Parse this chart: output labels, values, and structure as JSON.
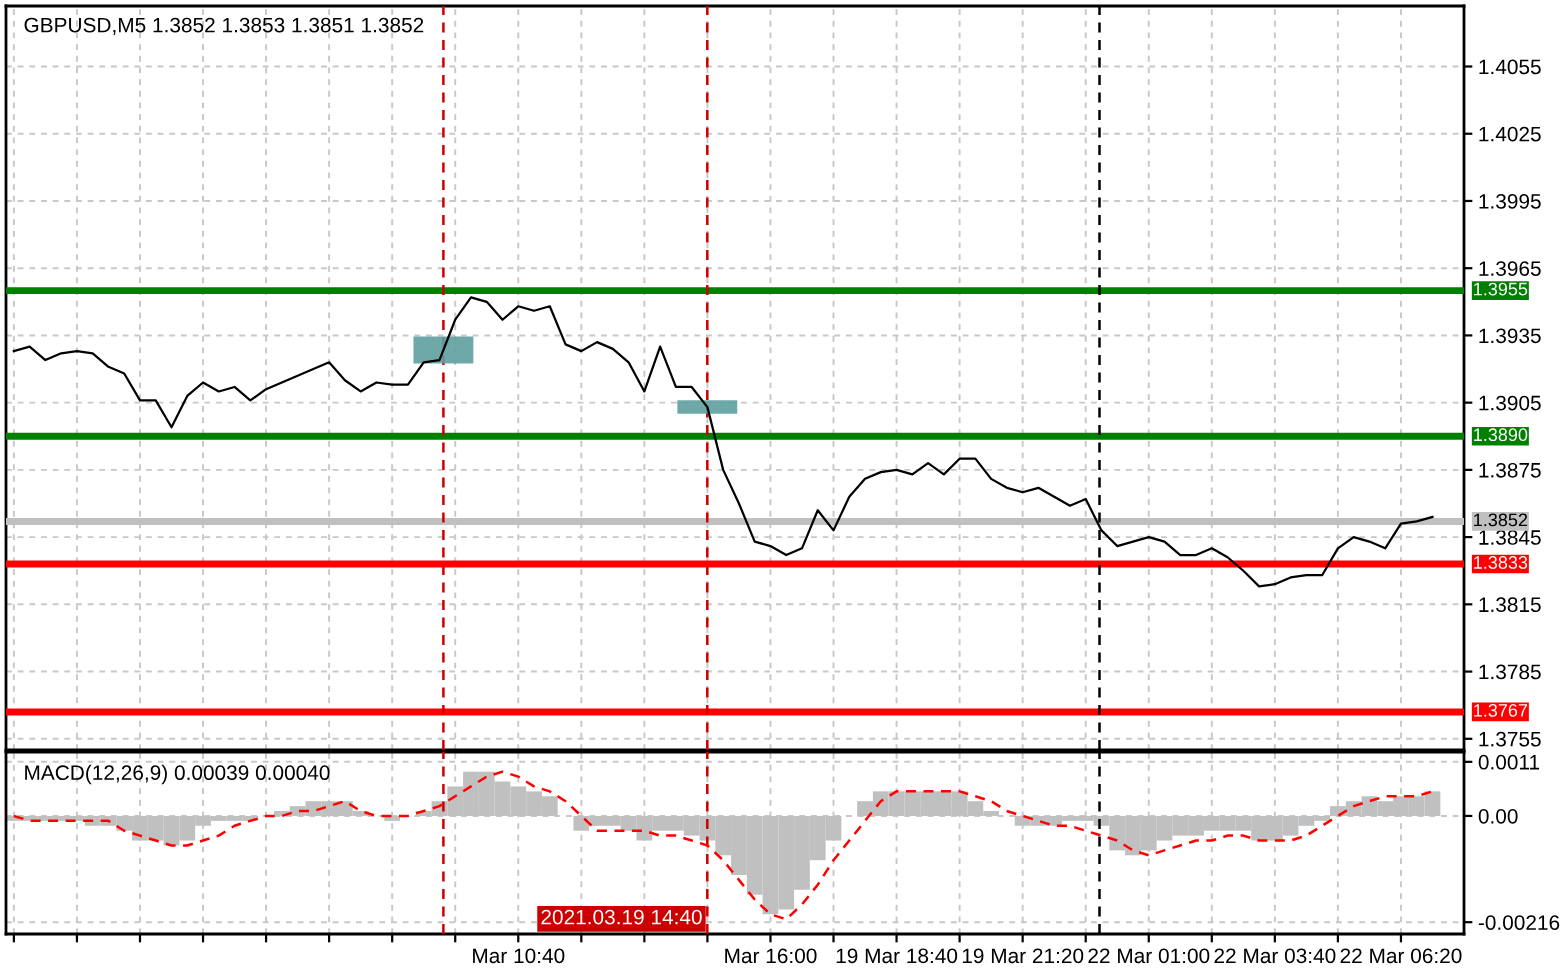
{
  "chart_data": [
    {
      "type": "line",
      "title": "GBPUSD,M5 1.3852 1.3853 1.3851 1.3852",
      "ylim": [
        1.375,
        1.4082
      ],
      "categories": [
        null,
        null,
        null,
        null,
        null,
        null,
        null,
        null,
        null,
        null,
        null,
        null,
        null,
        null,
        null,
        null,
        null,
        null,
        null,
        null,
        null,
        null,
        null,
        null,
        null,
        null,
        null,
        null,
        null,
        null,
        null,
        null,
        null,
        null,
        null,
        null,
        null,
        null,
        null,
        null,
        null,
        null,
        null,
        null,
        null,
        null,
        null,
        null,
        null,
        null,
        null,
        null,
        null,
        null,
        null,
        null,
        null,
        null,
        null,
        null,
        null,
        null,
        null,
        null,
        null,
        null,
        null,
        null,
        null,
        null,
        null,
        null,
        null,
        null,
        null,
        null,
        null,
        null,
        null,
        null,
        null,
        null,
        null,
        null,
        null,
        null,
        null,
        null,
        null,
        null,
        null
      ],
      "yticks": [
        1.4055,
        1.4025,
        1.3995,
        1.3965,
        1.3935,
        1.3905,
        1.3875,
        1.3845,
        1.3815,
        1.3785,
        1.3755
      ],
      "tick_labels": "y",
      "grid": true,
      "line_style": "solid",
      "series": [
        {
          "color": "#000000",
          "values": [
            1.3928,
            1.393,
            1.3924,
            1.3927,
            1.3928,
            1.3927,
            1.3921,
            1.3918,
            1.3906,
            1.3906,
            1.3894,
            1.3908,
            1.3914,
            1.391,
            1.3912,
            1.3906,
            1.3911,
            1.3914,
            1.3917,
            1.392,
            1.3923,
            1.3915,
            1.391,
            1.3914,
            1.3913,
            1.3913,
            1.3923,
            1.3924,
            1.3942,
            1.3952,
            1.395,
            1.3942,
            1.3948,
            1.3946,
            1.3948,
            1.3931,
            1.3928,
            1.3932,
            1.3929,
            1.3923,
            1.391,
            1.393,
            1.3912,
            1.3912,
            1.3903,
            1.3875,
            1.386,
            1.3843,
            1.3841,
            1.3837,
            1.384,
            1.3857,
            1.3848,
            1.3863,
            1.3871,
            1.3874,
            1.3875,
            1.3873,
            1.3878,
            1.3873,
            1.388,
            1.388,
            1.3871,
            1.3867,
            1.3865,
            1.3867,
            1.3863,
            1.3859,
            1.3862,
            1.3848,
            1.3841,
            1.3843,
            1.3845,
            1.3843,
            1.3837,
            1.3837,
            1.384,
            1.3836,
            1.383,
            1.3823,
            1.3824,
            1.3827,
            1.3828,
            1.3828,
            1.384,
            1.3845,
            1.3843,
            1.384,
            1.3851,
            1.3852,
            1.3854
          ]
        }
      ],
      "ref_lines": [
        {
          "axis": "y",
          "value": 1.3955,
          "label": "1.3955",
          "color": "#008000"
        },
        {
          "axis": "y",
          "value": 1.389,
          "label": "1.3890",
          "color": "#008000"
        },
        {
          "axis": "y",
          "value": 1.3852,
          "label": "1.3852",
          "color": "#c0c0c0"
        },
        {
          "axis": "y",
          "value": 1.3833,
          "label": "1.3833",
          "color": "#ff0000"
        },
        {
          "axis": "y",
          "value": 1.3767,
          "label": "1.3767",
          "color": "#ff0000"
        }
      ]
    },
    {
      "type": "line",
      "title": "MACD(12,26,9) 0.00039 0.00040",
      "ylim": [
        -0.0024,
        0.0013
      ],
      "categories": [
        null,
        null,
        null,
        null,
        null,
        null,
        null,
        null,
        null,
        null,
        null,
        null,
        null,
        null,
        null,
        null,
        null,
        null,
        null,
        null,
        null,
        null,
        null,
        null,
        null,
        null,
        null,
        null,
        null,
        null,
        null,
        null,
        "Mar 10:40",
        null,
        null,
        null,
        null,
        null,
        null,
        null,
        null,
        null,
        null,
        null,
        null,
        null,
        null,
        null,
        "Mar 16:00",
        null,
        null,
        null,
        null,
        null,
        null,
        null,
        "19 Mar 18:40",
        null,
        null,
        null,
        null,
        null,
        null,
        null,
        "19 Mar 21:20",
        null,
        null,
        null,
        null,
        null,
        null,
        null,
        "22 Mar 01:00",
        null,
        null,
        null,
        null,
        null,
        null,
        null,
        "22 Mar 03:40",
        null,
        null,
        null,
        null,
        null,
        null,
        null,
        "22 Mar 06:20",
        null,
        null
      ],
      "yticks": [
        {
          "value": 0.0011,
          "label": "0.0011"
        },
        {
          "value": 0,
          "label": "0.00"
        },
        {
          "value": -0.00216,
          "label": "-0.00216"
        }
      ],
      "grid": true,
      "series": [
        {
          "type": "bar",
          "color": "#c0c0c0",
          "values": [
            -0.0001,
            -0.0001,
            -0.0001,
            -0.0001,
            -0.0001,
            -0.0002,
            -0.0002,
            -0.0003,
            -0.0005,
            -0.0005,
            -0.0006,
            -0.0005,
            -0.0002,
            -0.0001,
            -0.0001,
            -0.0001,
            0,
            0.0001,
            0.0002,
            0.0003,
            0.0003,
            0.0003,
            0.0001,
            0,
            -0.0001,
            0,
            0.0001,
            0.0003,
            0.0006,
            0.0009,
            0.0009,
            0.0007,
            0.0006,
            0.0005,
            0.0004,
            0,
            -0.0003,
            -0.0002,
            -0.0002,
            -0.0003,
            -0.0005,
            -0.0003,
            -0.0003,
            -0.0004,
            -0.0005,
            -0.0008,
            -0.0012,
            -0.0016,
            -0.002,
            -0.0019,
            -0.0015,
            -0.0009,
            -0.0005,
            0,
            0.0003,
            0.0005,
            0.0005,
            0.0005,
            0.0005,
            0.0005,
            0.0005,
            0.0003,
            0.0001,
            0,
            -0.0002,
            -0.0002,
            -0.0002,
            -0.0001,
            -0.0001,
            -0.0002,
            -0.0007,
            -0.0008,
            -0.0007,
            -0.0005,
            -0.0004,
            -0.0004,
            -0.0003,
            -0.0003,
            -0.0003,
            -0.0005,
            -0.0005,
            -0.0004,
            -0.0002,
            -0.0001,
            0.0002,
            0.0003,
            0.0004,
            0.0003,
            0.0004,
            0.0004,
            0.0005
          ]
        },
        {
          "type": "line",
          "color": "#ff0000",
          "line_style": "dashed",
          "values": [
            0,
            -0.0001,
            -0.0001,
            -0.0001,
            -0.0001,
            -0.0001,
            -0.0001,
            -0.0003,
            -0.0004,
            -0.0005,
            -0.0006,
            -0.0006,
            -0.0005,
            -0.0004,
            -0.0002,
            -0.0001,
            0,
            0,
            0.0001,
            0.0001,
            0.0002,
            0.0003,
            0.0001,
            0,
            0,
            0,
            0.0001,
            0.0002,
            0.0004,
            0.0006,
            0.0008,
            0.0009,
            0.0008,
            0.0006,
            0.0005,
            0.0003,
            0,
            -0.0003,
            -0.0003,
            -0.0003,
            -0.0003,
            -0.0004,
            -0.0004,
            -0.0005,
            -0.0006,
            -0.0009,
            -0.0013,
            -0.0017,
            -0.002,
            -0.0021,
            -0.0018,
            -0.0014,
            -0.0009,
            -0.0005,
            -0.0001,
            0.0003,
            0.0005,
            0.0005,
            0.0005,
            0.0005,
            0.0005,
            0.0004,
            0.0003,
            0.0001,
            0,
            -0.0001,
            -0.0002,
            -0.0002,
            -0.0003,
            -0.0004,
            -0.0005,
            -0.0007,
            -0.0008,
            -0.0007,
            -0.0006,
            -0.0005,
            -0.0005,
            -0.0004,
            -0.0004,
            -0.0005,
            -0.0005,
            -0.0005,
            -0.0004,
            -0.0002,
            0,
            0.0002,
            0.0003,
            0.0004,
            0.0004,
            0.0004,
            0.0005
          ]
        }
      ],
      "annotations": [
        "2021.03.19 14:40"
      ]
    }
  ]
}
